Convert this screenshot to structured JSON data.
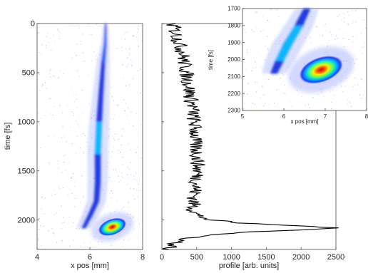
{
  "chart_data": [
    {
      "id": "streak",
      "type": "heatmap",
      "title": "",
      "xlabel": "x pos [mm]",
      "ylabel": "time [fs]",
      "xlim": [
        4,
        8
      ],
      "ylim": [
        0,
        2300
      ],
      "y_inverted": true,
      "xticks": [
        4,
        6,
        8
      ],
      "yticks": [
        0,
        500,
        1000,
        1500,
        2000
      ],
      "grid": false,
      "colormap": [
        "#ffffff",
        "#c8c8ff",
        "#1e3cff",
        "#00b4ff",
        "#40ff80",
        "#ffff00",
        "#ff6600",
        "#cc0000"
      ],
      "trace": [
        {
          "t": 0,
          "x": 6.6,
          "w": 0.06,
          "i": 0.15
        },
        {
          "t": 200,
          "x": 6.58,
          "w": 0.1,
          "i": 0.3
        },
        {
          "t": 400,
          "x": 6.5,
          "w": 0.16,
          "i": 0.45
        },
        {
          "t": 700,
          "x": 6.42,
          "w": 0.2,
          "i": 0.55
        },
        {
          "t": 1000,
          "x": 6.35,
          "w": 0.24,
          "i": 0.6
        },
        {
          "t": 1300,
          "x": 6.3,
          "w": 0.25,
          "i": 0.6
        },
        {
          "t": 1600,
          "x": 6.3,
          "w": 0.24,
          "i": 0.58
        },
        {
          "t": 1800,
          "x": 6.25,
          "w": 0.22,
          "i": 0.55
        },
        {
          "t": 1950,
          "x": 6.0,
          "w": 0.2,
          "i": 0.5
        },
        {
          "t": 2080,
          "x": 5.75,
          "w": 0.16,
          "i": 0.45
        }
      ],
      "hotspot": {
        "x": 6.85,
        "t": 2070,
        "intensity_peak": 1.0
      }
    },
    {
      "id": "profile",
      "type": "line",
      "title": "",
      "xlabel": "profile [arb. units]",
      "ylabel": "",
      "xlim": [
        0,
        2500
      ],
      "ylim": [
        0,
        2300
      ],
      "y_inverted": true,
      "xticks": [
        0,
        500,
        1000,
        1500,
        2000,
        2500
      ],
      "grid": false,
      "series": [
        {
          "t": [
            0,
            100,
            200,
            300,
            400,
            500,
            600,
            700,
            800,
            900,
            1000,
            1100,
            1200,
            1300,
            1400,
            1500,
            1600,
            1700,
            1800,
            1900,
            1950,
            2000,
            2030,
            2060,
            2080,
            2100,
            2120,
            2150,
            2200,
            2250,
            2300
          ],
          "v": [
            150,
            200,
            250,
            300,
            320,
            350,
            380,
            400,
            430,
            450,
            460,
            480,
            470,
            500,
            510,
            520,
            500,
            480,
            460,
            450,
            500,
            700,
            1100,
            2000,
            2480,
            2100,
            1300,
            700,
            300,
            150,
            100
          ]
        }
      ]
    },
    {
      "id": "inset",
      "type": "heatmap",
      "title": "",
      "xlabel": "x pos [mm]",
      "ylabel": "time [fs]",
      "xlim": [
        5,
        8
      ],
      "ylim": [
        1700,
        2300
      ],
      "y_inverted": true,
      "xticks": [
        5,
        6,
        7,
        8
      ],
      "yticks": [
        1700,
        1800,
        1900,
        2000,
        2100,
        2200,
        2300
      ],
      "grid": false,
      "trace": [
        {
          "t": 1700,
          "x": 6.55,
          "w": 0.18,
          "i": 0.55
        },
        {
          "t": 1800,
          "x": 6.35,
          "w": 0.22,
          "i": 0.6
        },
        {
          "t": 1900,
          "x": 6.1,
          "w": 0.24,
          "i": 0.62
        },
        {
          "t": 2000,
          "x": 5.9,
          "w": 0.22,
          "i": 0.6
        },
        {
          "t": 2080,
          "x": 5.75,
          "w": 0.18,
          "i": 0.5
        }
      ],
      "hotspot": {
        "x": 6.9,
        "t": 2060,
        "intensity_peak": 1.0
      }
    }
  ]
}
